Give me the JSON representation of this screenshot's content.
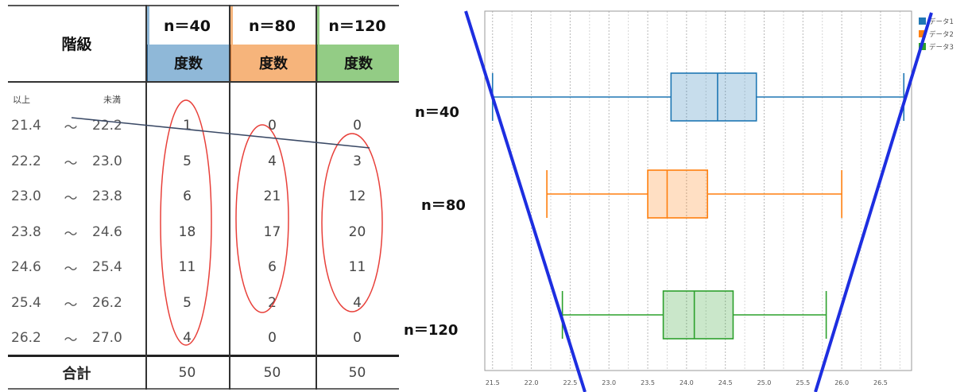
{
  "table": {
    "class_header": "階級",
    "freq_header": "度数",
    "lower_label": "以上",
    "upper_label": "未満",
    "separator": "～",
    "total_label": "合計",
    "columns": [
      {
        "n": "n＝40",
        "color": "#8fb8d8"
      },
      {
        "n": "n＝80",
        "color": "#f6b47b"
      },
      {
        "n": "n＝120",
        "color": "#93cc85"
      }
    ],
    "rows": [
      {
        "lo": "21.4",
        "hi": "22.2",
        "v": [
          "1",
          "0",
          "0"
        ]
      },
      {
        "lo": "22.2",
        "hi": "23.0",
        "v": [
          "5",
          "4",
          "3"
        ]
      },
      {
        "lo": "23.0",
        "hi": "23.8",
        "v": [
          "6",
          "21",
          "12"
        ]
      },
      {
        "lo": "23.8",
        "hi": "24.6",
        "v": [
          "18",
          "17",
          "20"
        ]
      },
      {
        "lo": "24.6",
        "hi": "25.4",
        "v": [
          "11",
          "6",
          "11"
        ]
      },
      {
        "lo": "25.4",
        "hi": "26.2",
        "v": [
          "5",
          "2",
          "4"
        ]
      },
      {
        "lo": "26.2",
        "hi": "27.0",
        "v": [
          "4",
          "0",
          "0"
        ]
      }
    ],
    "totals": [
      "50",
      "50",
      "50"
    ]
  },
  "plot_labels": [
    "n＝40",
    "n＝80",
    "n＝120"
  ],
  "chart_data": {
    "type": "boxplot",
    "orientation": "horizontal",
    "xlim": [
      21.4,
      26.9
    ],
    "x_ticks": [
      "21.5",
      "22.0",
      "22.5",
      "23.0",
      "23.5",
      "24.0",
      "24.5",
      "25.0",
      "25.5",
      "26.0",
      "26.5"
    ],
    "grid": true,
    "legend_position": "top-right",
    "series": [
      {
        "name": "データ1",
        "color": "#1f77b4",
        "min": 21.5,
        "q1": 23.8,
        "median": 24.4,
        "q3": 24.9,
        "max": 26.8
      },
      {
        "name": "データ2",
        "color": "#ff7f0e",
        "min": 22.2,
        "q1": 23.5,
        "median": 23.75,
        "q3": 24.27,
        "max": 26.0
      },
      {
        "name": "データ3",
        "color": "#2ca02c",
        "min": 22.4,
        "q1": 23.7,
        "median": 24.1,
        "q3": 24.6,
        "max": 25.8
      }
    ]
  }
}
